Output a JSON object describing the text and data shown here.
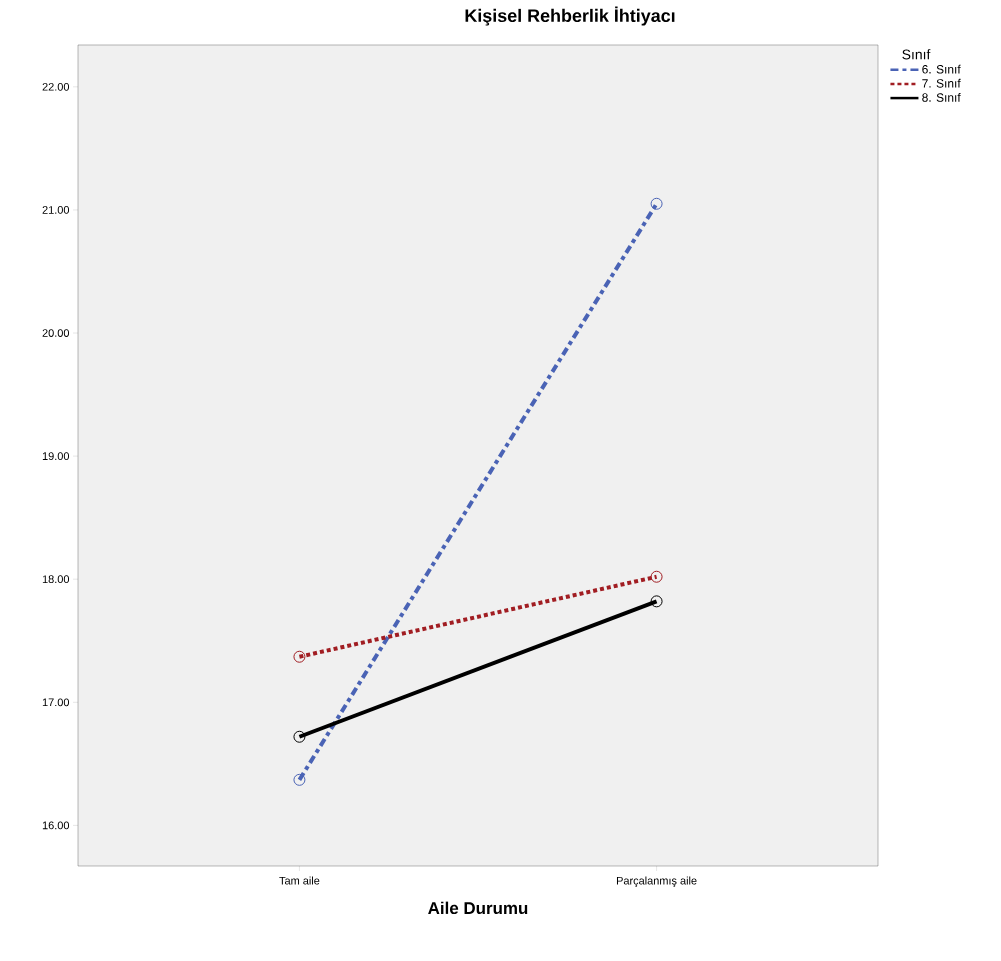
{
  "chart_data": {
    "type": "line",
    "title": "Kişisel Rehberlik İhtiyacı",
    "xlabel": "Aile Durumu",
    "legend_title": "Sınıf",
    "legend": "top right",
    "marker": "circle",
    "categories": [
      "Tam aile",
      "Parçalanmış aile"
    ],
    "ylim": [
      15.67,
      22.34
    ],
    "yticks": [
      {
        "value": 16,
        "label": "16.00"
      },
      {
        "value": 17,
        "label": "17.00"
      },
      {
        "value": 18,
        "label": "18.00"
      },
      {
        "value": 19,
        "label": "19.00"
      },
      {
        "value": 20,
        "label": "20.00"
      },
      {
        "value": 21,
        "label": "21.00"
      },
      {
        "value": 22,
        "label": "22.00"
      }
    ],
    "series": [
      {
        "name": "6. Sınıf",
        "color": "#4a63b5",
        "line_style": "dashdot",
        "values": [
          16.37,
          21.05
        ]
      },
      {
        "name": "7. Sınıf",
        "color": "#a11d22",
        "line_style": "dotted",
        "values": [
          17.37,
          18.02
        ]
      },
      {
        "name": "8. Sınıf",
        "color": "#000000",
        "line_style": "solid",
        "values": [
          16.72,
          17.82
        ]
      }
    ]
  }
}
